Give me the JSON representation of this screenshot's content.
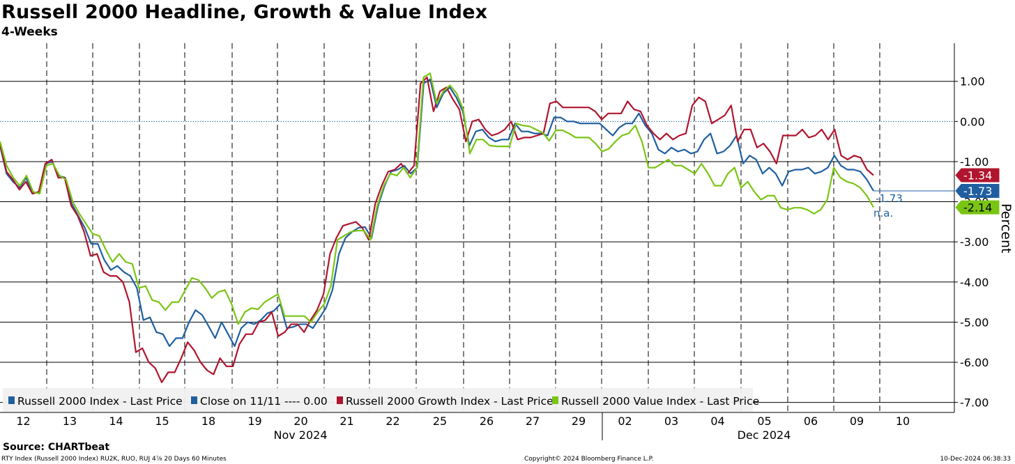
{
  "header": {
    "title": "Russell 2000 Headline, Growth & Value Index",
    "subtitle": "4-Weeks"
  },
  "footer": {
    "source": "Source: CHARTbeat",
    "ticker_info": "RTY Index (Russell 2000 Index) RU2K, RUO, RUJ 4⅞ 20 Days 60 Minutes",
    "copyright": "Copyright© 2024 Bloomberg Finance L.P.",
    "timestamp": "10-Dec-2024 06:38:33"
  },
  "chart_data": {
    "type": "line",
    "title": "Russell 2000 Headline, Growth & Value Index",
    "subtitle": "4-Weeks",
    "ylabel": "Percent",
    "ylim": [
      -7.25,
      1.95
    ],
    "yticks": [
      1.0,
      0.0,
      -1.0,
      -2.0,
      -3.0,
      -4.0,
      -5.0,
      -6.0,
      -7.0
    ],
    "ytick_labels": [
      "1.00",
      "0.00",
      "-1.00",
      "-2.00",
      "-3.00",
      "-4.00",
      "-5.00",
      "-6.00",
      "-7.00"
    ],
    "x_day_labels": [
      "12",
      "13",
      "14",
      "15",
      "18",
      "19",
      "20",
      "21",
      "22",
      "25",
      "26",
      "27",
      "29",
      "02",
      "03",
      "04",
      "05",
      "06",
      "09",
      "10"
    ],
    "x_month_labels": [
      "Nov 2024",
      "Dec 2024"
    ],
    "zero_line": 0.0,
    "series": [
      {
        "name": "Russell 2000 Index - Last Price",
        "color": "#1f5fa0",
        "last_value": "-1.73",
        "values": [
          -0.6,
          -1.3,
          -1.5,
          -1.65,
          -1.4,
          -1.8,
          -1.75,
          -1.05,
          -1.0,
          -1.35,
          -1.4,
          -2.05,
          -2.35,
          -2.65,
          -3.05,
          -3.05,
          -3.45,
          -3.7,
          -3.6,
          -3.75,
          -3.85,
          -4.15,
          -4.95,
          -4.88,
          -5.25,
          -5.3,
          -5.6,
          -5.4,
          -5.4,
          -5.0,
          -4.7,
          -4.82,
          -5.1,
          -5.4,
          -5.0,
          -5.3,
          -5.6,
          -5.15,
          -5.0,
          -5.05,
          -4.95,
          -4.78,
          -4.72,
          -4.55,
          -5.15,
          -5.12,
          -5.05,
          -5.05,
          -5.15,
          -4.9,
          -4.65,
          -4.2,
          -3.3,
          -2.9,
          -2.75,
          -2.65,
          -2.63,
          -2.9,
          -2.1,
          -1.6,
          -1.25,
          -1.2,
          -1.1,
          -1.3,
          -1.15,
          0.95,
          1.05,
          0.35,
          0.7,
          0.85,
          0.6,
          0.25,
          -0.6,
          -0.25,
          -0.2,
          -0.4,
          -0.5,
          -0.45,
          -0.45,
          -0.05,
          -0.25,
          -0.25,
          -0.3,
          -0.3,
          -0.35,
          0.1,
          0.1,
          0.0,
          0.0,
          -0.05,
          -0.05,
          -0.05,
          -0.05,
          -0.2,
          -0.35,
          -0.15,
          -0.05,
          -0.05,
          0.2,
          -0.1,
          -0.3,
          -0.7,
          -0.8,
          -0.65,
          -0.75,
          -0.7,
          -0.8,
          -0.75,
          -0.45,
          -0.3,
          -0.8,
          -0.75,
          -0.6,
          -0.35,
          -1.05,
          -0.85,
          -0.95,
          -1.3,
          -1.15,
          -1.3,
          -1.6,
          -1.25,
          -1.2,
          -1.2,
          -1.15,
          -1.3,
          -1.25,
          -1.15,
          -0.85,
          -1.1,
          -1.2,
          -1.2,
          -1.25,
          -1.45,
          -1.73
        ]
      },
      {
        "name": "Close on 11/11",
        "color": "#1f5fa0",
        "last_value": "0.00",
        "style": "dotted"
      },
      {
        "name": "Russell 2000 Growth Index - Last Price",
        "color": "#b0152e",
        "last_value": "-1.34",
        "values": [
          -0.55,
          -1.25,
          -1.45,
          -1.7,
          -1.5,
          -1.8,
          -1.75,
          -1.05,
          -0.95,
          -1.4,
          -1.4,
          -2.1,
          -2.35,
          -2.75,
          -3.35,
          -3.3,
          -3.75,
          -3.85,
          -3.85,
          -4.0,
          -4.5,
          -5.75,
          -5.65,
          -6.0,
          -6.15,
          -6.5,
          -6.25,
          -6.25,
          -5.9,
          -5.5,
          -5.7,
          -6.0,
          -6.2,
          -6.3,
          -5.9,
          -6.1,
          -6.1,
          -5.55,
          -5.3,
          -5.3,
          -5.0,
          -4.95,
          -4.75,
          -5.35,
          -5.25,
          -5.05,
          -5.05,
          -5.25,
          -4.95,
          -4.7,
          -4.3,
          -3.3,
          -2.9,
          -2.6,
          -2.55,
          -2.5,
          -2.65,
          -2.95,
          -2.05,
          -1.6,
          -1.25,
          -1.2,
          -1.05,
          -1.3,
          -1.1,
          0.95,
          1.1,
          0.25,
          0.75,
          0.85,
          0.55,
          0.3,
          -0.5,
          0.0,
          0.05,
          -0.2,
          -0.35,
          -0.3,
          -0.2,
          0.0,
          -0.45,
          -0.4,
          -0.4,
          -0.35,
          -0.3,
          0.45,
          0.5,
          0.35,
          0.35,
          0.35,
          0.35,
          0.35,
          0.25,
          0.05,
          0.2,
          0.2,
          0.2,
          0.5,
          0.3,
          0.25,
          -0.1,
          -0.3,
          -0.45,
          -0.3,
          -0.45,
          -0.35,
          -0.3,
          0.4,
          0.6,
          0.5,
          -0.05,
          0.05,
          0.15,
          0.4,
          -0.5,
          -0.2,
          -0.2,
          -0.65,
          -0.55,
          -0.75,
          -1.05,
          -0.35,
          -0.35,
          -0.35,
          -0.2,
          -0.4,
          -0.35,
          -0.2,
          -0.45,
          -0.2,
          -0.85,
          -0.95,
          -0.85,
          -0.9,
          -1.2,
          -1.34
        ]
      },
      {
        "name": "Russell 2000 Value Index - Last Price",
        "color": "#7ac514",
        "last_value": "-2.14",
        "values": [
          -0.5,
          -1.1,
          -1.4,
          -1.6,
          -1.35,
          -1.75,
          -1.8,
          -1.1,
          -1.05,
          -1.35,
          -1.45,
          -2.0,
          -2.3,
          -2.55,
          -2.8,
          -2.85,
          -3.2,
          -3.5,
          -3.3,
          -3.5,
          -3.55,
          -4.15,
          -4.1,
          -4.45,
          -4.5,
          -4.7,
          -4.5,
          -4.5,
          -4.2,
          -3.9,
          -3.95,
          -4.15,
          -4.4,
          -4.25,
          -4.2,
          -4.55,
          -5.05,
          -4.75,
          -4.65,
          -4.68,
          -4.5,
          -4.4,
          -4.3,
          -4.85,
          -4.85,
          -4.85,
          -4.85,
          -5.0,
          -4.75,
          -4.55,
          -4.1,
          -2.95,
          -2.85,
          -2.75,
          -2.72,
          -2.72,
          -2.95,
          -2.1,
          -1.6,
          -1.3,
          -1.35,
          -1.15,
          -1.4,
          -1.15,
          1.1,
          1.2,
          0.45,
          0.75,
          0.9,
          0.7,
          0.3,
          -0.8,
          -0.45,
          -0.45,
          -0.6,
          -0.62,
          -0.62,
          -0.62,
          -0.05,
          -0.1,
          -0.12,
          -0.2,
          -0.28,
          -0.48,
          -0.22,
          -0.22,
          -0.3,
          -0.4,
          -0.4,
          -0.4,
          -0.55,
          -0.75,
          -0.68,
          -0.5,
          -0.35,
          -0.3,
          -0.1,
          -0.5,
          -1.15,
          -1.15,
          -1.05,
          -0.95,
          -1.1,
          -1.1,
          -1.2,
          -1.3,
          -1.05,
          -1.3,
          -1.6,
          -1.6,
          -1.3,
          -1.15,
          -1.65,
          -1.5,
          -1.75,
          -1.95,
          -1.85,
          -1.85,
          -2.15,
          -2.2,
          -2.15,
          -2.15,
          -2.2,
          -2.3,
          -2.2,
          -1.95,
          -1.15,
          -1.4,
          -1.5,
          -1.55,
          -1.65,
          -1.85,
          -2.14
        ]
      }
    ],
    "annotations": [
      "-1.73",
      "n.a."
    ]
  }
}
